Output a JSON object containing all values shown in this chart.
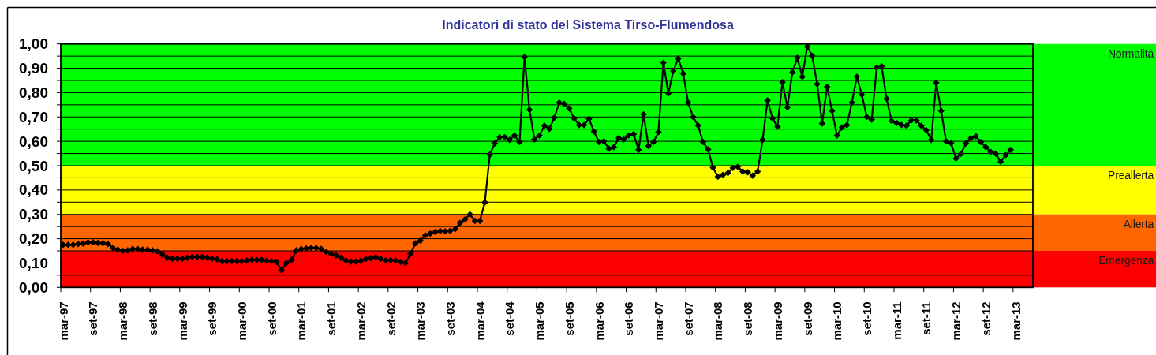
{
  "chart_data": {
    "type": "line",
    "title": "Indicatori di stato del Sistema Tirso-Flumendosa",
    "categories": [
      "mar-97",
      null,
      null,
      null,
      null,
      null,
      "set-97",
      null,
      null,
      null,
      null,
      null,
      "mar-98",
      null,
      null,
      null,
      null,
      null,
      "set-98",
      null,
      null,
      null,
      null,
      null,
      "mar-99",
      null,
      null,
      null,
      null,
      null,
      "set-99",
      null,
      null,
      null,
      null,
      null,
      "mar-00",
      null,
      null,
      null,
      null,
      null,
      "set-00",
      null,
      null,
      null,
      null,
      null,
      "mar-01",
      null,
      null,
      null,
      null,
      null,
      "set-01",
      null,
      null,
      null,
      null,
      null,
      "mar-02",
      null,
      null,
      null,
      null,
      null,
      "set-02",
      null,
      null,
      null,
      null,
      null,
      "mar-03",
      null,
      null,
      null,
      null,
      null,
      "set-03",
      null,
      null,
      null,
      null,
      null,
      "mar-04",
      null,
      null,
      null,
      null,
      null,
      "set-04",
      null,
      null,
      null,
      null,
      null,
      "mar-05",
      null,
      null,
      null,
      null,
      null,
      "set-05",
      null,
      null,
      null,
      null,
      null,
      "mar-06",
      null,
      null,
      null,
      null,
      null,
      "set-06",
      null,
      null,
      null,
      null,
      null,
      "mar-07",
      null,
      null,
      null,
      null,
      null,
      "set-07",
      null,
      null,
      null,
      null,
      null,
      "mar-08",
      null,
      null,
      null,
      null,
      null,
      "set-08",
      null,
      null,
      null,
      null,
      null,
      "mar-09",
      null,
      null,
      null,
      null,
      null,
      "set-09",
      null,
      null,
      null,
      null,
      null,
      "mar-10",
      null,
      null,
      null,
      null,
      null,
      "set-10",
      null,
      null,
      null,
      null,
      null,
      "mar-11",
      null,
      null,
      null,
      null,
      null,
      "set-11",
      null,
      null,
      null,
      null,
      null,
      "mar-12",
      null,
      null,
      null,
      null,
      null,
      "set-12",
      null,
      null,
      null,
      null,
      null,
      "mar-13",
      null,
      null,
      null
    ],
    "values": [
      0.175,
      0.175,
      0.175,
      0.178,
      0.18,
      0.185,
      0.185,
      0.183,
      0.182,
      0.178,
      0.162,
      0.155,
      0.15,
      0.152,
      0.158,
      0.158,
      0.155,
      0.155,
      0.152,
      0.148,
      0.135,
      0.122,
      0.118,
      0.118,
      0.118,
      0.122,
      0.125,
      0.125,
      0.125,
      0.122,
      0.118,
      0.115,
      0.108,
      0.108,
      0.108,
      0.108,
      0.108,
      0.11,
      0.113,
      0.113,
      0.113,
      0.11,
      0.108,
      0.105,
      0.07,
      0.1,
      0.113,
      0.152,
      0.158,
      0.16,
      0.162,
      0.162,
      0.158,
      0.146,
      0.138,
      0.131,
      0.122,
      0.111,
      0.106,
      0.106,
      0.109,
      0.117,
      0.12,
      0.124,
      0.117,
      0.111,
      0.111,
      0.111,
      0.105,
      0.1,
      0.138,
      0.181,
      0.192,
      0.214,
      0.221,
      0.228,
      0.232,
      0.23,
      0.232,
      0.239,
      0.265,
      0.279,
      0.3,
      0.273,
      0.273,
      0.349,
      0.545,
      0.592,
      0.617,
      0.617,
      0.606,
      0.624,
      0.597,
      0.946,
      0.73,
      0.608,
      0.624,
      0.664,
      0.651,
      0.697,
      0.759,
      0.754,
      0.735,
      0.694,
      0.667,
      0.667,
      0.692,
      0.64,
      0.597,
      0.6,
      0.57,
      0.576,
      0.613,
      0.608,
      0.624,
      0.63,
      0.565,
      0.711,
      0.581,
      0.597,
      0.638,
      0.923,
      0.797,
      0.889,
      0.94,
      0.878,
      0.759,
      0.7,
      0.665,
      0.597,
      0.567,
      0.492,
      0.455,
      0.462,
      0.47,
      0.491,
      0.495,
      0.476,
      0.473,
      0.459,
      0.476,
      0.606,
      0.768,
      0.694,
      0.66,
      0.843,
      0.74,
      0.883,
      0.943,
      0.865,
      0.989,
      0.951,
      0.835,
      0.673,
      0.824,
      0.725,
      0.624,
      0.657,
      0.667,
      0.759,
      0.865,
      0.792,
      0.7,
      0.689,
      0.902,
      0.908,
      0.775,
      0.684,
      0.675,
      0.667,
      0.664,
      0.686,
      0.686,
      0.664,
      0.646,
      0.606,
      0.84,
      0.725,
      0.6,
      0.592,
      0.529,
      0.549,
      0.592,
      0.613,
      0.621,
      0.597,
      0.576,
      0.556,
      0.549,
      0.516,
      0.543,
      0.565,
      null,
      null,
      null,
      null
    ],
    "color": "#000000",
    "marker": "diamond",
    "grid": "y",
    "ylim": [
      0,
      1
    ],
    "yticks": [
      {
        "value": 0,
        "label": "0,00"
      },
      {
        "value": 0.05,
        "label": null
      },
      {
        "value": 0.1,
        "label": "0,10"
      },
      {
        "value": 0.15,
        "label": null
      },
      {
        "value": 0.2,
        "label": "0,20"
      },
      {
        "value": 0.25,
        "label": null
      },
      {
        "value": 0.3,
        "label": "0,30"
      },
      {
        "value": 0.35,
        "label": null
      },
      {
        "value": 0.4,
        "label": "0,40"
      },
      {
        "value": 0.45,
        "label": null
      },
      {
        "value": 0.5,
        "label": "0,50"
      },
      {
        "value": 0.55,
        "label": null
      },
      {
        "value": 0.6,
        "label": "0,60"
      },
      {
        "value": 0.65,
        "label": null
      },
      {
        "value": 0.7,
        "label": "0,70"
      },
      {
        "value": 0.75,
        "label": null
      },
      {
        "value": 0.8,
        "label": "0,80"
      },
      {
        "value": 0.85,
        "label": null
      },
      {
        "value": 0.9,
        "label": "0,90"
      },
      {
        "value": 0.95,
        "label": null
      },
      {
        "value": 1,
        "label": "1,00"
      }
    ],
    "bands": [
      {
        "axis": "y",
        "from": 0.5,
        "to": 1,
        "label": "Normalità",
        "color": "#00ff00"
      },
      {
        "axis": "y",
        "from": 0.3,
        "to": 0.5,
        "label": "Preallerta",
        "color": "#ffff00"
      },
      {
        "axis": "y",
        "from": 0.15,
        "to": 0.3,
        "label": "Allerta",
        "color": "#ff6600"
      },
      {
        "axis": "y",
        "from": 0,
        "to": 0.15,
        "label": "Emergenza",
        "color": "#ff0000"
      }
    ]
  }
}
